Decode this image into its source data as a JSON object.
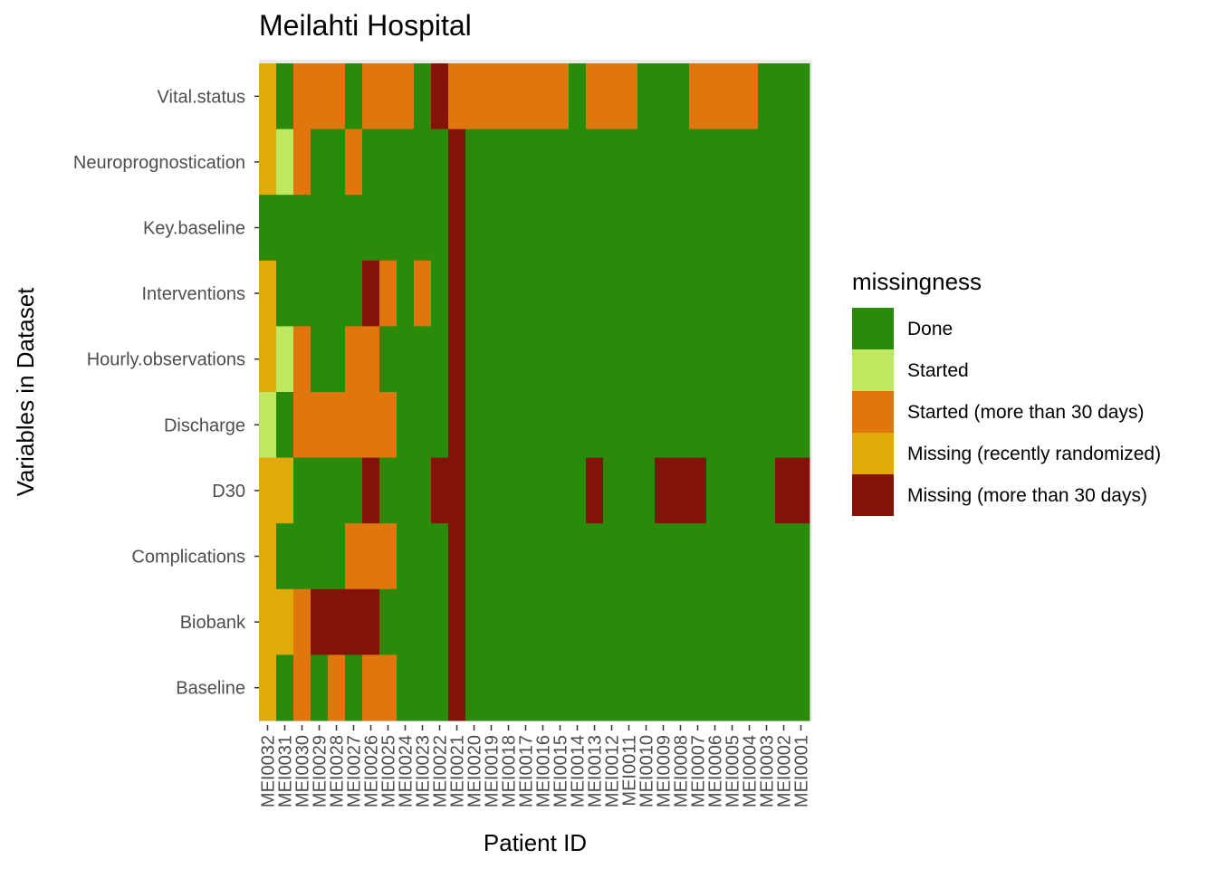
{
  "chart_data": {
    "type": "heatmap",
    "title": "Meilahti Hospital",
    "xlabel": "Patient ID",
    "ylabel": "Variables in Dataset",
    "legend_title": "missingness",
    "legend_position": "right",
    "categories_x": [
      "MEI0032",
      "MEI0031",
      "MEI0030",
      "MEI0029",
      "MEI0028",
      "MEI0027",
      "MEI0026",
      "MEI0025",
      "MEI0024",
      "MEI0023",
      "MEI0022",
      "MEI0021",
      "MEI0020",
      "MEI0019",
      "MEI0018",
      "MEI0017",
      "MEI0016",
      "MEI0015",
      "MEI0014",
      "MEI0013",
      "MEI0012",
      "MEI0011",
      "MEI0010",
      "MEI0009",
      "MEI0008",
      "MEI0007",
      "MEI0006",
      "MEI0005",
      "MEI0004",
      "MEI0003",
      "MEI0002",
      "MEI0001"
    ],
    "categories_y": [
      "Vital.status",
      "Neuroprognostication",
      "Key.baseline",
      "Interventions",
      "Hourly.observations",
      "Discharge",
      "D30",
      "Complications",
      "Biobank",
      "Baseline"
    ],
    "levels": [
      {
        "code": "D",
        "label": "Done",
        "color": "#2a8a0a"
      },
      {
        "code": "S",
        "label": "Started",
        "color": "#bde85f"
      },
      {
        "code": "O",
        "label": "Started (more than 30 days)",
        "color": "#e0760e"
      },
      {
        "code": "R",
        "label": "Missing (recently randomized)",
        "color": "#e0ab0a"
      },
      {
        "code": "M",
        "label": "Missing (more than 30 days)",
        "color": "#851209"
      }
    ],
    "rows": {
      "Vital.status": "RDOOODOOODMOOOOOOODOOODDDOOOODDD",
      "Neuroprognostication": "RSODDODDDDDMDDDDDDDDDDDDDDDDDDDD",
      "Key.baseline": "DDDDDDDDDDDMDDDDDDDDDDDDDDDDDDDD",
      "Interventions": "RDDDDDMODODMDDDDDDDDDDDDDDDDDDDD",
      "Hourly.observations": "RSODDOODDDDMDDDDDDDDDDDDDDDDDDDD",
      "Discharge": "SDOOOOOODDDMDDDDDDDDDDDDDDDDDDDD",
      "D30": "RRDDDDMDDDMMDDDDDDDMDDDMMMDDDDMM",
      "Complications": "RDDDDOOODDDMDDDDDDDDDDDDDDDDDDDD",
      "Biobank": "RROMMMMDDDDMDDDDDDDDDDDDDDDDDDDD",
      "Baseline": "RDODODOODDDMDDDDDDDDDDDDDDDDDDDD"
    }
  }
}
